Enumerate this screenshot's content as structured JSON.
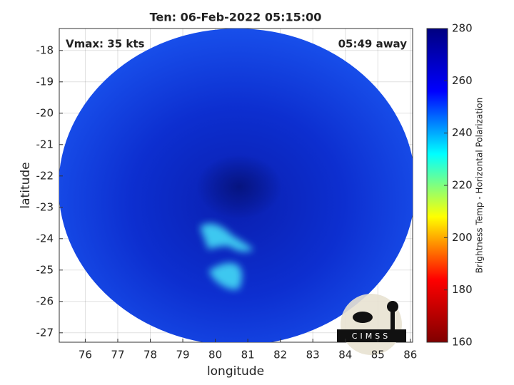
{
  "chart_data": {
    "type": "satellite-image",
    "title": "Ten: 06-Feb-2022 05:15:00",
    "annotations": [
      "Vmax: 35 kts",
      "05:49 away"
    ],
    "x_label": "longitude",
    "y_label": "latitude",
    "xlim": [
      75.2,
      86.07
    ],
    "ylim": [
      -27.3,
      -17.3
    ],
    "xticks": [
      76,
      77,
      78,
      79,
      80,
      81,
      82,
      83,
      84,
      85,
      86
    ],
    "yticks": [
      -18,
      -19,
      -20,
      -21,
      -22,
      -23,
      -24,
      -25,
      -26,
      -27
    ],
    "grid": true,
    "colorbar": {
      "label": "Brightness Temp - Horizontal Polarization",
      "lim": [
        160,
        280
      ],
      "ticks": [
        160,
        180,
        200,
        220,
        240,
        260,
        280
      ],
      "colormap": [
        "#800000",
        "#ff0000",
        "#ffff00",
        "#00ffff",
        "#0000ff",
        "#000080"
      ]
    },
    "logo": "CIMSS"
  }
}
